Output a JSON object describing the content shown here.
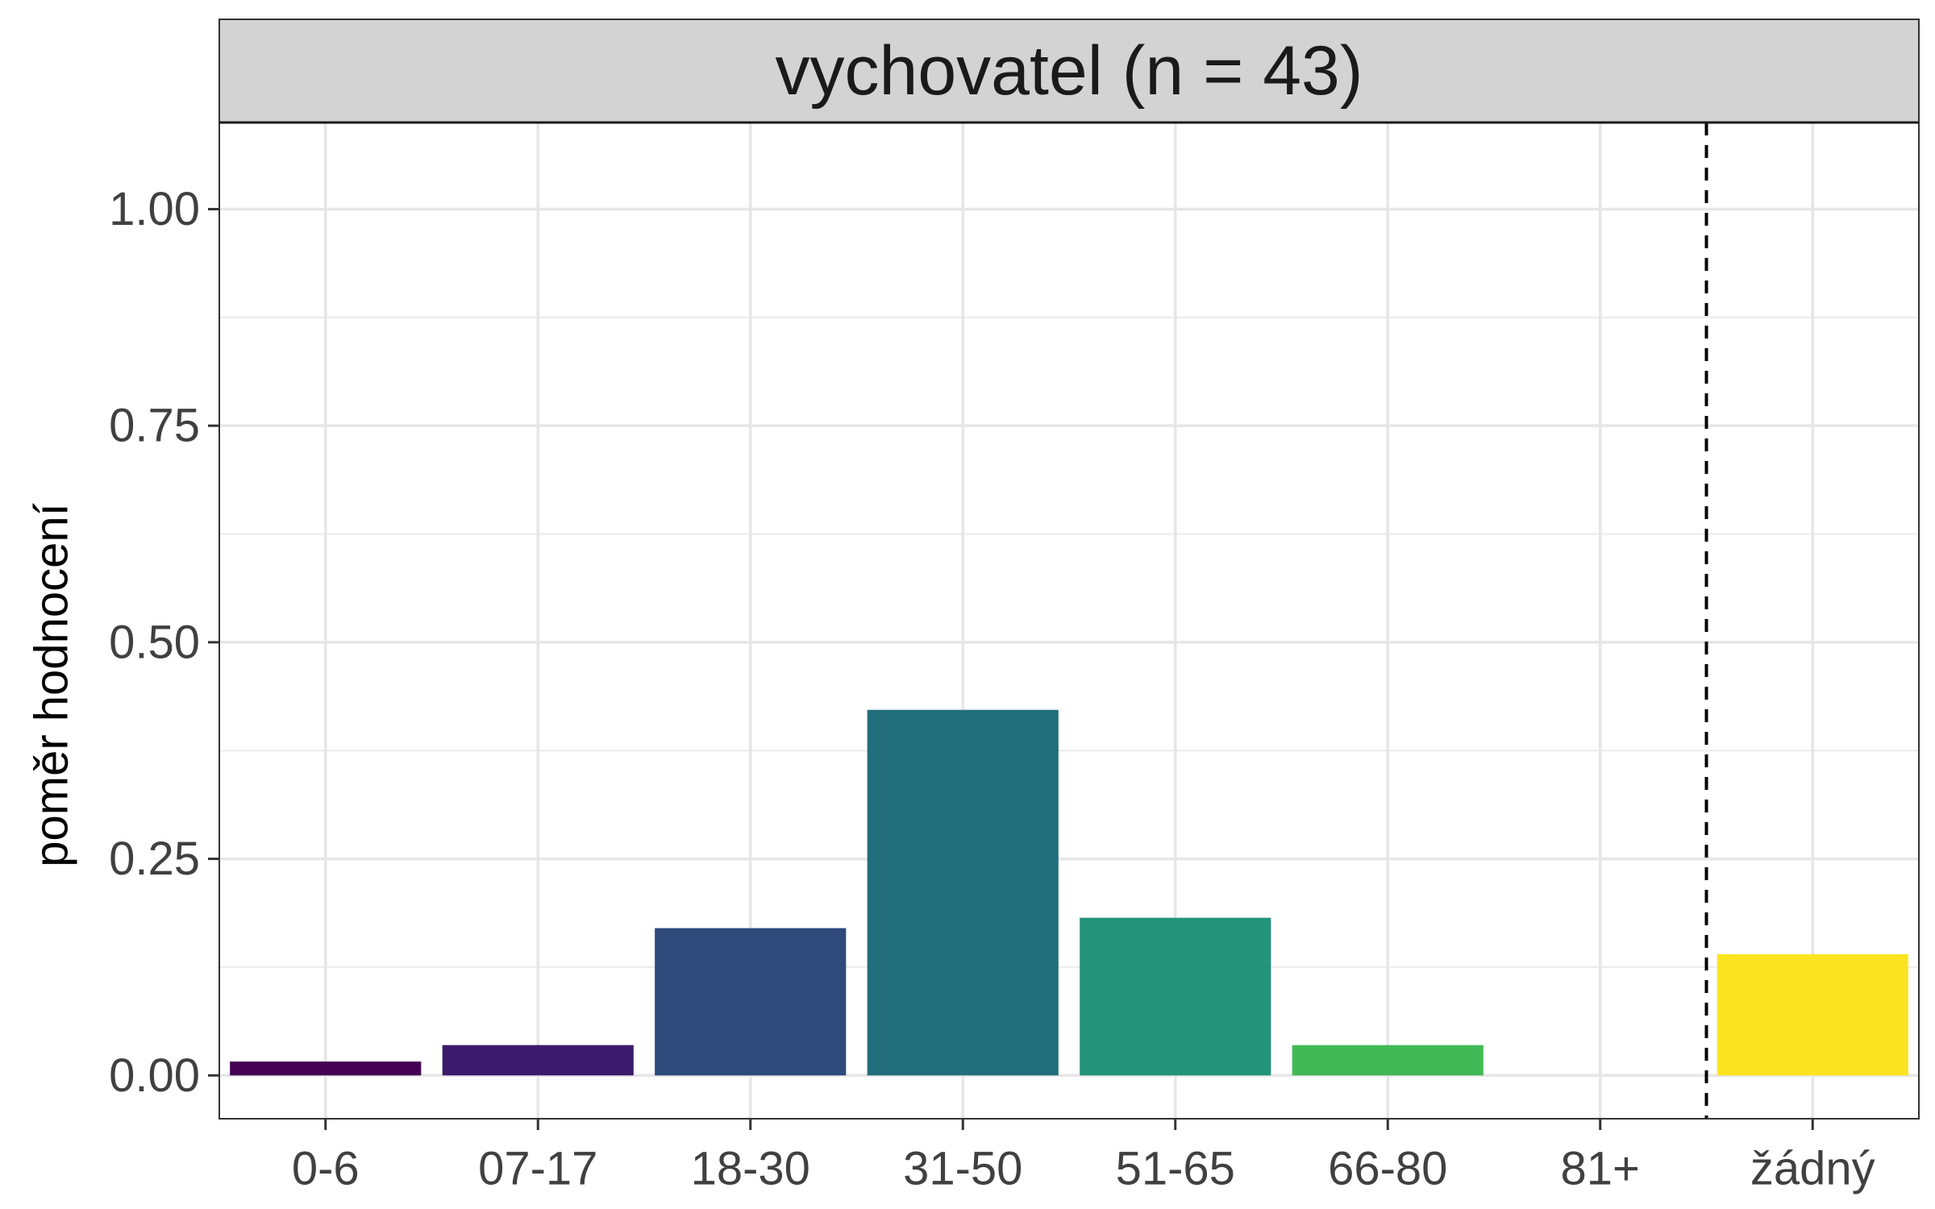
{
  "chart_data": {
    "type": "bar",
    "facet_title": "vychovatel (n = 43)",
    "ylabel": "poměr hodnocení",
    "xlabel": "",
    "categories": [
      "0-6",
      "07-17",
      "18-30",
      "31-50",
      "51-65",
      "66-80",
      "81+",
      "žádný"
    ],
    "values": [
      0.016,
      0.035,
      0.17,
      0.422,
      0.182,
      0.035,
      0.0,
      0.14
    ],
    "colors": [
      "#440154",
      "#3b1c6c",
      "#2d4a7b",
      "#226e7c",
      "#239479",
      "#41b957",
      "#8bd540",
      "#fde421"
    ],
    "ylim": [
      -0.05,
      1.1
    ],
    "yticks": [
      0.0,
      0.25,
      0.5,
      0.75,
      1.0
    ],
    "ytick_labels": [
      "0.00",
      "0.25",
      "0.50",
      "0.75",
      "1.00"
    ],
    "reference_line": {
      "between": [
        "81+",
        "žádný"
      ],
      "style": "dashed"
    },
    "grid": true
  }
}
